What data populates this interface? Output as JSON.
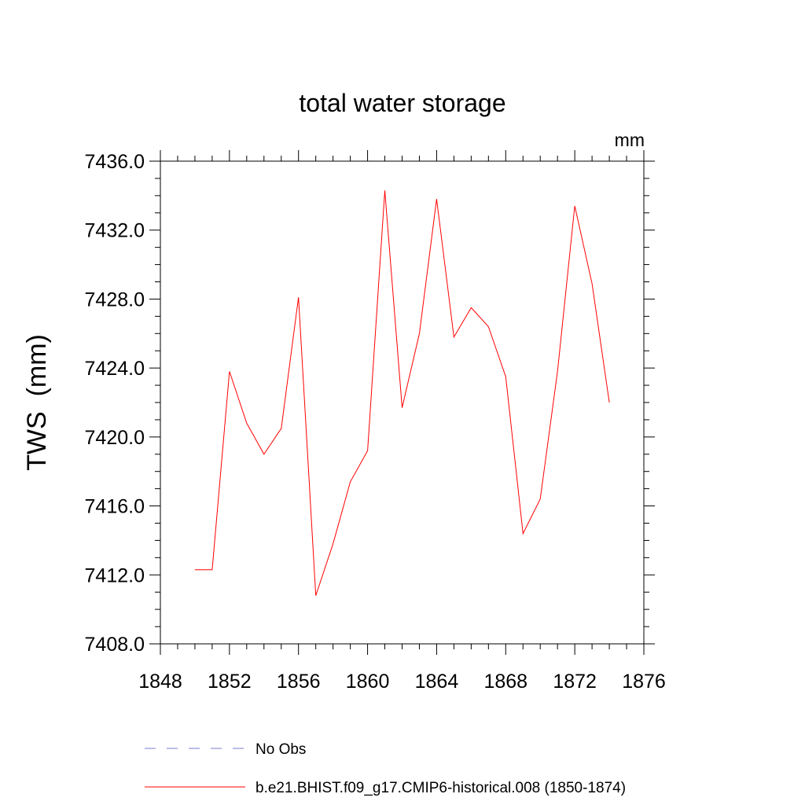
{
  "chart_data": {
    "type": "line",
    "title": "total water storage",
    "units_label": "mm",
    "ylabel": "TWS  (mm)",
    "xlabel": "",
    "xlim": [
      1848,
      1876
    ],
    "ylim": [
      7408.0,
      7436.0
    ],
    "x_ticks": [
      1848,
      1852,
      1856,
      1860,
      1864,
      1868,
      1872,
      1876
    ],
    "x_tick_labels": [
      "1848",
      "1852",
      "1856",
      "1860",
      "1864",
      "1868",
      "1872",
      "1876"
    ],
    "y_ticks": [
      7408.0,
      7412.0,
      7416.0,
      7420.0,
      7424.0,
      7428.0,
      7432.0,
      7436.0
    ],
    "y_tick_labels": [
      "7408.0",
      "7412.0",
      "7416.0",
      "7420.0",
      "7424.0",
      "7428.0",
      "7432.0",
      "7436.0"
    ],
    "grid": false,
    "legend_position": "bottom",
    "legend": [
      {
        "label": "No Obs",
        "color": "#7b7bd0",
        "style": "dashed"
      },
      {
        "label": "b.e21.BHIST.f09_g17.CMIP6-historical.008 (1850-1874)",
        "color": "#ff0000",
        "style": "solid"
      }
    ],
    "series": [
      {
        "name": "b.e21.BHIST.f09_g17.CMIP6-historical.008 (1850-1874)",
        "color": "#ff0000",
        "x": [
          1850,
          1851,
          1852,
          1853,
          1854,
          1855,
          1856,
          1857,
          1858,
          1859,
          1860,
          1861,
          1862,
          1863,
          1864,
          1865,
          1866,
          1867,
          1868,
          1869,
          1870,
          1871,
          1872,
          1873,
          1874
        ],
        "values": [
          7412.3,
          7412.3,
          7423.8,
          7420.8,
          7419.0,
          7420.5,
          7428.1,
          7410.8,
          7413.8,
          7417.4,
          7419.2,
          7434.3,
          7421.7,
          7426.0,
          7433.8,
          7425.8,
          7427.5,
          7426.4,
          7423.5,
          7414.4,
          7416.4,
          7423.8,
          7433.4,
          7428.9,
          7422.0
        ]
      }
    ]
  }
}
